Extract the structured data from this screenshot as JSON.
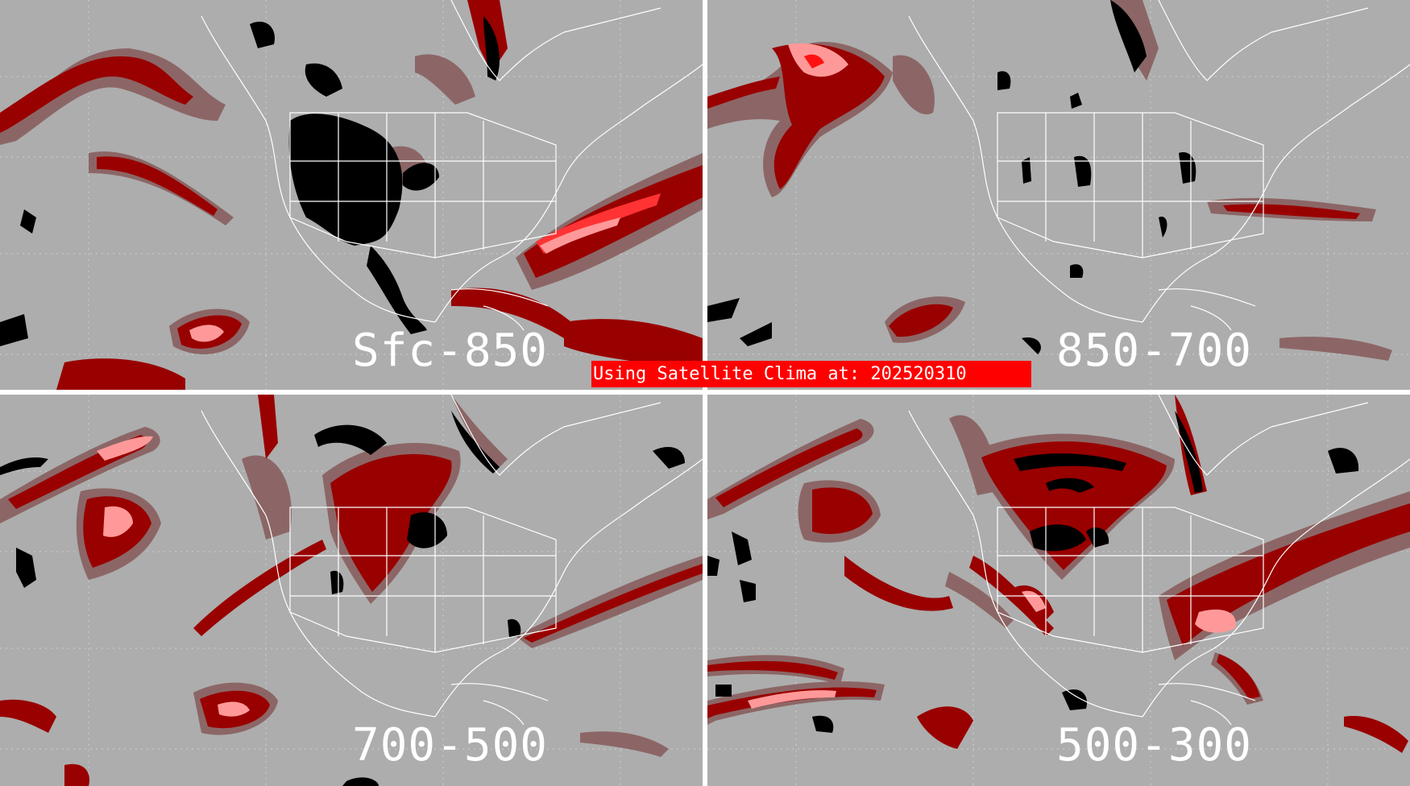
{
  "panels": [
    {
      "id": "sfc-850",
      "label": "Sfc-850"
    },
    {
      "id": "850-700",
      "label": "850-700"
    },
    {
      "id": "700-500",
      "label": "700-500"
    },
    {
      "id": "500-300",
      "label": "500-300"
    }
  ],
  "banner": {
    "text": "Using Satellite Clima at: 202520310"
  },
  "colors": {
    "background": "#adadad",
    "dark_red": "#990000",
    "mauve": "#8c6666",
    "pink": "#ff9999",
    "bright_red": "#ff1111",
    "black": "#000000",
    "borders": "#ffffff"
  }
}
